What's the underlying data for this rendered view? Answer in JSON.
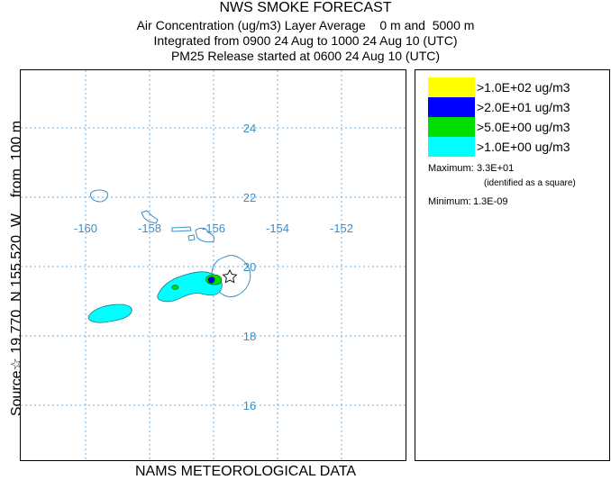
{
  "header": {
    "title": "NWS SMOKE FORECAST",
    "line2": "Air Concentration (ug/m3) Layer Average    0 m and  5000 m",
    "line3": "Integrated from 0900 24 Aug to 1000 24 Aug 10 (UTC)",
    "line4": "PM25 Release started at 0600 24 Aug 10 (UTC)"
  },
  "side_label": "Source☆ 19.770  N 155.520  W    from  100 m",
  "bottom_label": "NAMS METEOROLOGICAL DATA",
  "map": {
    "lon_labels": [
      "-160",
      "-158",
      "-156",
      "-154",
      "-152"
    ],
    "lat_labels": [
      "24",
      "22",
      "20",
      "18",
      "16"
    ],
    "lon_values": [
      -160,
      -158,
      -156,
      -154,
      -152
    ],
    "lat_values": [
      24,
      22,
      20,
      18,
      16
    ],
    "gridline_color": "#6aaee0",
    "label_color": "#3a8fc8",
    "source_marker": "star-icon"
  },
  "legend": {
    "items": [
      {
        "label": ">1.0E+02 ug/m3",
        "color": "#ffff00"
      },
      {
        "label": ">2.0E+01 ug/m3",
        "color": "#0000ff"
      },
      {
        "label": ">5.0E+00 ug/m3",
        "color": "#00dd00"
      },
      {
        "label": ">1.0E+00 ug/m3",
        "color": "#00ffff"
      }
    ],
    "maximum_label": "Maximum:",
    "maximum_value": "3.3E+01",
    "maximum_note": "(identified as a square)",
    "minimum_label": "Minimum:",
    "minimum_value": "1.3E-09"
  }
}
